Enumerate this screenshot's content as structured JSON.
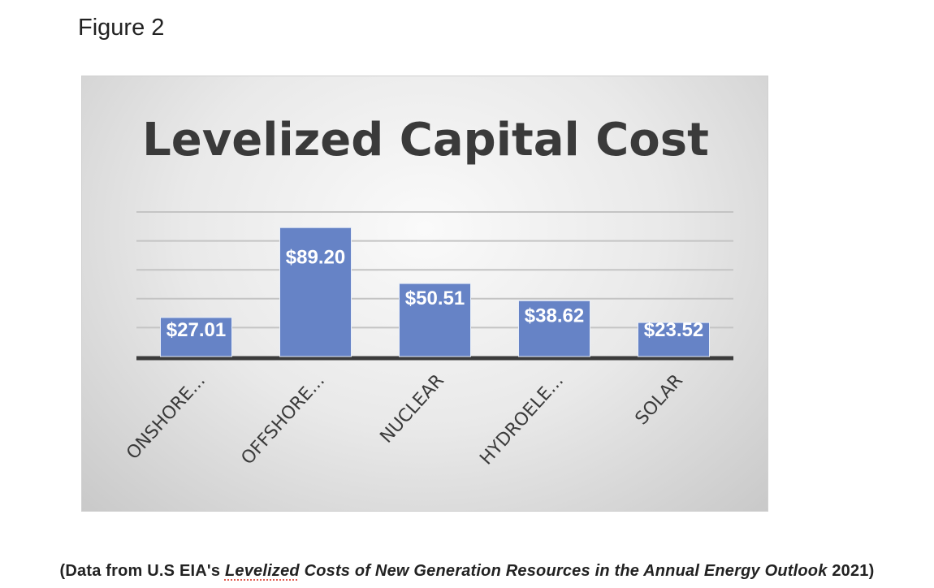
{
  "figure_label": "Figure 2",
  "chart_data": {
    "type": "bar",
    "title": "Levelized Capital Cost",
    "categories": [
      "ONSHORE...",
      "OFFSHORE...",
      "NUCLEAR",
      "HYDROELE...",
      "SOLAR"
    ],
    "values": [
      27.01,
      89.2,
      50.51,
      38.62,
      23.52
    ],
    "data_labels": [
      "$27.01",
      "$89.20",
      "$50.51",
      "$38.62",
      "$23.52"
    ],
    "xlabel": "",
    "ylabel": "",
    "ylim": [
      0,
      100
    ],
    "grid": true,
    "grid_step": 20,
    "legend": "none",
    "bar_color": "#6683c6"
  },
  "caption": {
    "prefix": "(Data from U.S EIA's ",
    "italic_underlined": "Levelized",
    "italic_rest": " Costs of New Generation Resources in the Annual Energy Outlook",
    "suffix": " 2021)"
  }
}
